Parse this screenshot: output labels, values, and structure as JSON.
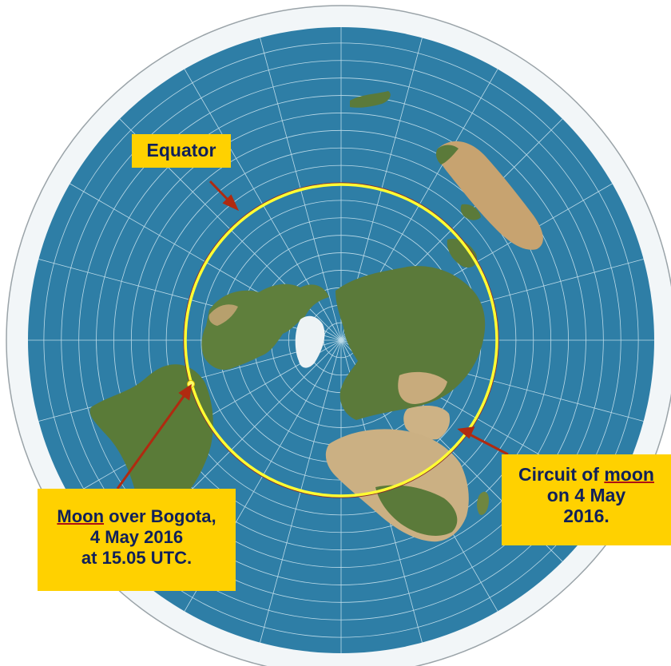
{
  "map": {
    "projection": "azimuthal equidistant (north pole centred)",
    "colors": {
      "ocean": "#2e7ea6",
      "land_green": "#5b7a3a",
      "land_desert": "#c8ab7c",
      "ice": "#f2f6f8",
      "graticule": "#d6ecf5",
      "equator_line": "#8a2a2a",
      "moon_circuit": "#ffff33",
      "arrow": "#b02a10",
      "callout_bg": "#ffd100",
      "callout_text": "#10205a"
    }
  },
  "callouts": {
    "equator": {
      "text": "Equator"
    },
    "moon_bogota": {
      "line1_u": "Moon",
      "line1_rest": " over Bogota,",
      "line2": "4 May 2016",
      "line3": "at 15.05 UTC."
    },
    "moon_circuit": {
      "line1_pre": "Circuit of ",
      "line1_u": "moon",
      "line2": "on 4 May",
      "line3": "2016."
    }
  }
}
